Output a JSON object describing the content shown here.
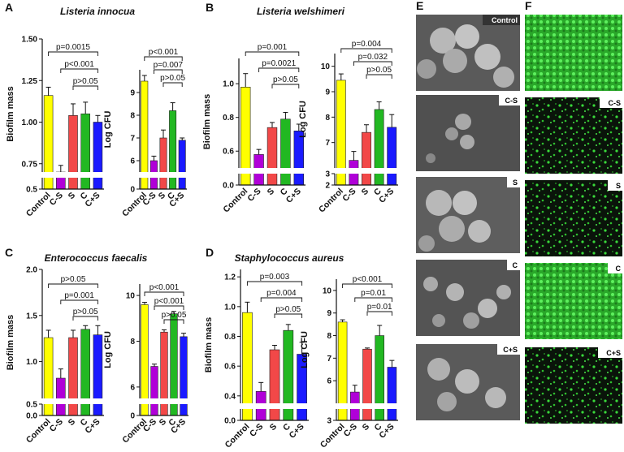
{
  "panel_labels": [
    "A",
    "B",
    "C",
    "D",
    "E",
    "F"
  ],
  "chart_data": [
    {
      "type": "bar",
      "title": "Listeria innocua",
      "ylabel": "Biofilm mass",
      "categories": [
        "Control",
        "C-S",
        "S",
        "C",
        "C+S"
      ],
      "values": [
        1.16,
        0.7,
        1.04,
        1.05,
        1.0
      ],
      "errors": [
        0.05,
        0.04,
        0.07,
        0.07,
        0.04
      ],
      "colors": [
        "#ffff00",
        "#b000d8",
        "#f24848",
        "#22b822",
        "#1a1aff"
      ],
      "ylim": [
        0.5,
        1.5
      ],
      "ybreak": [
        0.6,
        0.7
      ],
      "yticks": [
        0.5,
        0.75,
        {
          "value": 1,
          "label": "1.00"
        },
        1.25,
        {
          "value": 1.5,
          "label": "1.50"
        }
      ],
      "brackets": [
        {
          "from": "Control",
          "to": "C+S",
          "text": "p=0.0015"
        },
        {
          "from": "C-S",
          "to": "C+S",
          "text": "p<0.001"
        },
        {
          "from": "S",
          "to": "C+S",
          "text": "p>0.05"
        }
      ]
    },
    {
      "type": "bar",
      "ylabel": "Log CFU",
      "categories": [
        "Control",
        "C-S",
        "S",
        "C",
        "C+S"
      ],
      "values": [
        9.5,
        6.0,
        7.0,
        8.2,
        6.9
      ],
      "errors": [
        0.25,
        0.2,
        0.35,
        0.35,
        0.1
      ],
      "colors": [
        "#ffff00",
        "#b000d8",
        "#f24848",
        "#22b822",
        "#1a1aff"
      ],
      "ylim": [
        0,
        10
      ],
      "ybreak": [
        1,
        5.5
      ],
      "yticks": [
        0,
        6,
        7,
        8,
        9
      ],
      "brackets": [
        {
          "from": "Control",
          "to": "C+S",
          "text": "p<0.001"
        },
        {
          "from": "C-S",
          "to": "C+S",
          "text": "p=0.007"
        },
        {
          "from": "S",
          "to": "C+S",
          "text": "p>0.05"
        }
      ]
    },
    {
      "type": "bar",
      "title": "Listeria welshimeri",
      "ylabel": "Biofilm mass",
      "categories": [
        "Control",
        "C-S",
        "S",
        "C",
        "C+S"
      ],
      "values": [
        0.98,
        0.58,
        0.74,
        0.79,
        0.72
      ],
      "errors": [
        0.08,
        0.03,
        0.03,
        0.04,
        0.04
      ],
      "colors": [
        "#ffff00",
        "#b000d8",
        "#f24848",
        "#22b822",
        "#1a1aff"
      ],
      "ylim": [
        0,
        1.15
      ],
      "ybreak": [
        0.05,
        0.5
      ],
      "yticks": [
        {
          "value": 0,
          "label": "0.0"
        },
        0.6,
        0.8,
        {
          "value": 1,
          "label": "1.0"
        }
      ],
      "brackets": [
        {
          "from": "Control",
          "to": "C+S",
          "text": "p=0.001"
        },
        {
          "from": "C-S",
          "to": "C+S",
          "text": "p=0.0021"
        },
        {
          "from": "S",
          "to": "C+S",
          "text": "p>0.05"
        }
      ]
    },
    {
      "type": "bar",
      "ylabel": "Log CFU",
      "categories": [
        "Control",
        "C-S",
        "S",
        "C",
        "C+S"
      ],
      "values": [
        9.45,
        6.3,
        7.4,
        8.3,
        7.6
      ],
      "errors": [
        0.25,
        0.35,
        0.3,
        0.3,
        0.5
      ],
      "colors": [
        "#ffff00",
        "#b000d8",
        "#f24848",
        "#22b822",
        "#1a1aff"
      ],
      "ylim": [
        2,
        10.5
      ],
      "ybreak": [
        3,
        6
      ],
      "yticks": [
        2,
        3,
        7,
        8,
        9,
        10
      ],
      "brackets": [
        {
          "from": "Control",
          "to": "C+S",
          "text": "p=0.004"
        },
        {
          "from": "C-S",
          "to": "C+S",
          "text": "p=0.032"
        },
        {
          "from": "S",
          "to": "C+S",
          "text": "p>0.05"
        }
      ]
    },
    {
      "type": "bar",
      "title": "Enterococcus faecalis",
      "ylabel": "Biofilm mass",
      "categories": [
        "Control",
        "C-S",
        "S",
        "C",
        "C+S"
      ],
      "values": [
        1.26,
        0.82,
        1.26,
        1.35,
        1.29
      ],
      "errors": [
        0.08,
        0.1,
        0.08,
        0.04,
        0.1
      ],
      "colors": [
        "#ffff00",
        "#b000d8",
        "#f24848",
        "#22b822",
        "#1a1aff"
      ],
      "ylim": [
        0,
        2
      ],
      "ybreak": [
        0.5,
        0.6
      ],
      "yticks": [
        {
          "value": 0,
          "label": "0.0"
        },
        0.5,
        {
          "value": 1,
          "label": "1.0"
        },
        1.5,
        {
          "value": 2,
          "label": "2.0"
        }
      ],
      "brackets": [
        {
          "from": "Control",
          "to": "C+S",
          "text": "p>0.05"
        },
        {
          "from": "C-S",
          "to": "C+S",
          "text": "p=0.001"
        },
        {
          "from": "S",
          "to": "C+S",
          "text": "p>0.05"
        }
      ]
    },
    {
      "type": "bar",
      "ylabel": "Log CFU",
      "categories": [
        "Control",
        "C-S",
        "S",
        "C",
        "C+S"
      ],
      "values": [
        9.6,
        6.9,
        8.4,
        9.2,
        8.2
      ],
      "errors": [
        0.1,
        0.1,
        0.1,
        0.1,
        0.15
      ],
      "colors": [
        "#ffff00",
        "#b000d8",
        "#f24848",
        "#22b822",
        "#1a1aff"
      ],
      "ylim": [
        0,
        10.5
      ],
      "ybreak": [
        0.5,
        5.5
      ],
      "yticks": [
        0,
        6,
        8,
        10
      ],
      "brackets": [
        {
          "from": "Control",
          "to": "C+S",
          "text": "p<0.001"
        },
        {
          "from": "C-S",
          "to": "C+S",
          "text": "p<0.001"
        },
        {
          "from": "S",
          "to": "C+S",
          "text": "p>0.05"
        }
      ]
    },
    {
      "type": "bar",
      "title": "Staphylococcus aureus",
      "ylabel": "Biofilm mass",
      "categories": [
        "Control",
        "C-S",
        "S",
        "C",
        "C+S"
      ],
      "values": [
        0.96,
        0.43,
        0.71,
        0.84,
        0.68
      ],
      "errors": [
        0.07,
        0.06,
        0.03,
        0.04,
        0.08
      ],
      "colors": [
        "#ffff00",
        "#b000d8",
        "#f24848",
        "#22b822",
        "#1a1aff"
      ],
      "ylim": [
        0,
        1.25
      ],
      "ybreak": [
        0.05,
        0.35
      ],
      "yticks": [
        {
          "value": 0,
          "label": "0.0"
        },
        0.4,
        0.6,
        0.8,
        {
          "value": 1,
          "label": "1.0"
        },
        1.2
      ],
      "brackets": [
        {
          "from": "Control",
          "to": "C+S",
          "text": "p=0.003"
        },
        {
          "from": "C-S",
          "to": "C+S",
          "text": "p=0.004"
        },
        {
          "from": "S",
          "to": "C+S",
          "text": "p>0.05"
        }
      ]
    },
    {
      "type": "bar",
      "ylabel": "Log CFU",
      "categories": [
        "Control",
        "C-S",
        "S",
        "C",
        "C+S"
      ],
      "values": [
        8.6,
        5.5,
        7.4,
        8.0,
        6.6
      ],
      "errors": [
        0.1,
        0.3,
        0.05,
        0.45,
        0.3
      ],
      "colors": [
        "#ffff00",
        "#b000d8",
        "#f24848",
        "#22b822",
        "#1a1aff"
      ],
      "ylim": [
        3,
        10.5
      ],
      "ybreak": [
        3.2,
        5
      ],
      "yticks": [
        3,
        6,
        7,
        8,
        9,
        10
      ],
      "brackets": [
        {
          "from": "Control",
          "to": "C+S",
          "text": "p<0.001"
        },
        {
          "from": "C-S",
          "to": "C+S",
          "text": "p=0.01"
        },
        {
          "from": "S",
          "to": "C+S",
          "text": "p=0.01"
        }
      ]
    }
  ],
  "micrographs": {
    "sem_labels": [
      "Control",
      "C-S",
      "S",
      "C",
      "C+S"
    ],
    "fluor_labels": [
      "C-S",
      "S",
      "C",
      "C+S"
    ]
  }
}
